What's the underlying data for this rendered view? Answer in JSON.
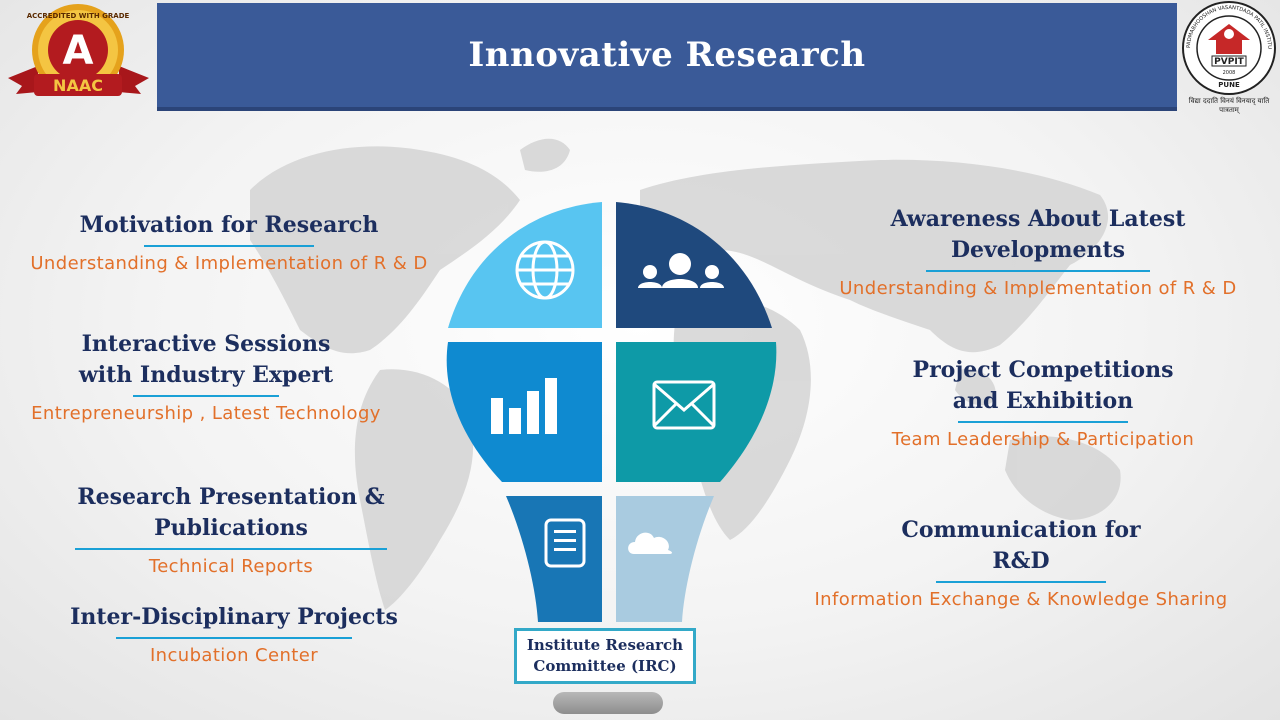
{
  "header": {
    "title": "Innovative Research"
  },
  "logos": {
    "left": {
      "grade": "A",
      "badge": "NAAC",
      "ring_text": "ACCREDITED WITH GRADE"
    },
    "right": {
      "abbr": "PVPIT",
      "city": "PUNE",
      "year": "2008",
      "ring_text": "PADMABHOOSHAN VASANTDADA PATIL INSTITUTE OF TECHNOLOGY",
      "motto": "विद्या ददाति विनयं विनयाद् याति पात्रताम्"
    }
  },
  "left_topics": [
    {
      "title_lines": [
        "Motivation  for Research"
      ],
      "subtitle": "Understanding & Implementation  of R & D"
    },
    {
      "title_lines": [
        "Interactive Sessions",
        "with Industry Expert"
      ],
      "subtitle": "Entrepreneurship  , Latest Technology"
    },
    {
      "title_lines": [
        "Research Presentation & Publications"
      ],
      "subtitle": "Technical Reports"
    },
    {
      "title_lines": [
        "Inter-Disciplinary Projects"
      ],
      "subtitle": "Incubation Center"
    }
  ],
  "right_topics": [
    {
      "title_lines": [
        "Awareness About Latest",
        "Developments"
      ],
      "subtitle": "Understanding & Implementation  of R & D"
    },
    {
      "title_lines": [
        "Project Competitions",
        "and Exhibition"
      ],
      "subtitle": "Team Leadership & Participation"
    },
    {
      "title_lines": [
        "Communication for",
        "R&D"
      ],
      "subtitle": "Information Exchange & Knowledge Sharing"
    }
  ],
  "bulb": {
    "segments": [
      {
        "icon": "globe-icon",
        "color": "#58c5f1"
      },
      {
        "icon": "people-icon",
        "color": "#1f497d"
      },
      {
        "icon": "bar-chart-icon",
        "color": "#0f8ad0"
      },
      {
        "icon": "envelope-icon",
        "color": "#0e9aa7"
      },
      {
        "icon": "document-icon",
        "color": "#1876b5"
      },
      {
        "icon": "cloud-icon",
        "color": "#a9cbe0"
      }
    ]
  },
  "irc": {
    "line1": "Institute Research",
    "line2": "Committee (IRC)"
  }
}
